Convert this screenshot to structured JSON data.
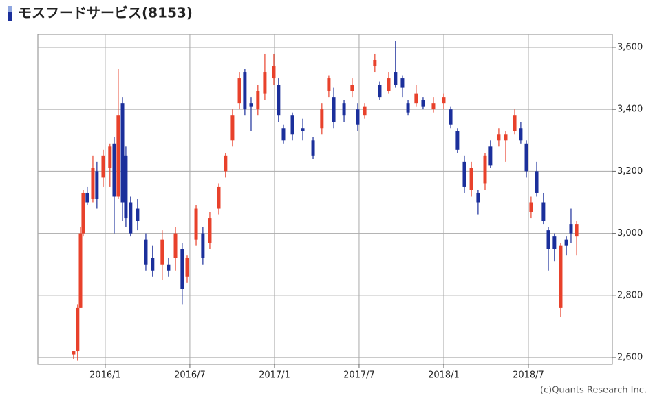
{
  "chart_data": {
    "type": "candlestick",
    "title": "モスフードサービス(8153)",
    "credit": "(c)Quants Research Inc.",
    "up_color": "#e8412b",
    "down_color": "#1b2f9b",
    "grid": true,
    "xlim": [
      2015.602,
      2018.996
    ],
    "xticks": [
      {
        "value": 2016,
        "label": "2016/1"
      },
      {
        "value": 2016.5,
        "label": "2016/7"
      },
      {
        "value": 2017,
        "label": "2017/1"
      },
      {
        "value": 2017.5,
        "label": "2017/7"
      },
      {
        "value": 2018,
        "label": "2018/1"
      },
      {
        "value": 2018.5,
        "label": "2018/7"
      }
    ],
    "ylim": [
      2578,
      3642
    ],
    "yticks": [
      {
        "value": 2600,
        "label": "2,600"
      },
      {
        "value": 2800,
        "label": "2,800"
      },
      {
        "value": 3000,
        "label": "3,000"
      },
      {
        "value": 3200,
        "label": "3,200"
      },
      {
        "value": 3400,
        "label": "3,400"
      },
      {
        "value": 3600,
        "label": "3,600"
      }
    ],
    "x": [
      2015.813,
      2015.837,
      2015.854,
      2015.87,
      2015.894,
      2015.927,
      2015.951,
      2015.988,
      2016.028,
      2016.053,
      2016.077,
      2016.102,
      2016.122,
      2016.15,
      2016.191,
      2016.24,
      2016.28,
      2016.337,
      2016.374,
      2016.415,
      2016.455,
      2016.484,
      2016.537,
      2016.577,
      2016.618,
      2016.671,
      2016.711,
      2016.752,
      2016.793,
      2016.825,
      2016.862,
      2016.902,
      2016.943,
      2016.996,
      2017.024,
      2017.053,
      2017.106,
      2017.167,
      2017.228,
      2017.28,
      2017.321,
      2017.35,
      2017.411,
      2017.459,
      2017.492,
      2017.533,
      2017.593,
      2017.622,
      2017.675,
      2017.715,
      2017.756,
      2017.789,
      2017.837,
      2017.878,
      2017.939,
      2018.0,
      2018.041,
      2018.081,
      2018.122,
      2018.163,
      2018.203,
      2018.244,
      2018.276,
      2018.325,
      2018.366,
      2018.419,
      2018.455,
      2018.488,
      2018.516,
      2018.549,
      2018.589,
      2018.618,
      2018.654,
      2018.691,
      2018.724,
      2018.752,
      2018.785
    ],
    "open": [
      2610,
      2620,
      2760,
      3000,
      3130,
      3110,
      3200,
      3180,
      3210,
      3290,
      3120,
      3420,
      3250,
      3100,
      3080,
      2980,
      2920,
      2900,
      2900,
      2920,
      2950,
      2860,
      2980,
      3000,
      2970,
      3080,
      3200,
      3300,
      3420,
      3520,
      3420,
      3400,
      3450,
      3500,
      3480,
      3340,
      3380,
      3340,
      3300,
      3340,
      3460,
      3440,
      3420,
      3460,
      3400,
      3380,
      3540,
      3480,
      3460,
      3520,
      3500,
      3420,
      3420,
      3430,
      3400,
      3420,
      3400,
      3330,
      3230,
      3140,
      3130,
      3160,
      3280,
      3300,
      3300,
      3330,
      3340,
      3290,
      3070,
      3200,
      3100,
      3010,
      2990,
      2760,
      2980,
      3030,
      2990
    ],
    "high": [
      2620,
      2770,
      3020,
      3140,
      3150,
      3250,
      3230,
      3270,
      3290,
      3310,
      3530,
      3440,
      3280,
      3120,
      3110,
      3000,
      2960,
      3010,
      2920,
      3020,
      2970,
      2930,
      3090,
      3020,
      3070,
      3160,
      3260,
      3400,
      3520,
      3530,
      3440,
      3480,
      3580,
      3580,
      3500,
      3350,
      3390,
      3370,
      3310,
      3420,
      3510,
      3470,
      3430,
      3500,
      3420,
      3420,
      3580,
      3490,
      3520,
      3620,
      3510,
      3430,
      3480,
      3440,
      3440,
      3450,
      3410,
      3340,
      3250,
      3230,
      3140,
      3260,
      3300,
      3340,
      3330,
      3400,
      3360,
      3300,
      3120,
      3230,
      3130,
      3020,
      3000,
      2970,
      2990,
      3080,
      3040
    ],
    "low": [
      2595,
      2590,
      2760,
      2990,
      3090,
      3100,
      3080,
      3150,
      3150,
      3000,
      3110,
      3040,
      3020,
      2990,
      3010,
      2880,
      2860,
      2850,
      2860,
      2880,
      2770,
      2840,
      2960,
      2900,
      2950,
      3060,
      3180,
      3280,
      3400,
      3380,
      3330,
      3380,
      3430,
      3480,
      3360,
      3290,
      3300,
      3300,
      3240,
      3320,
      3440,
      3340,
      3360,
      3440,
      3330,
      3370,
      3520,
      3430,
      3450,
      3470,
      3440,
      3380,
      3410,
      3400,
      3390,
      3400,
      3340,
      3260,
      3130,
      3120,
      3060,
      3140,
      3210,
      3280,
      3230,
      3320,
      3290,
      3180,
      3050,
      3120,
      3030,
      2880,
      2910,
      2730,
      2930,
      2970,
      2930
    ],
    "close": [
      2620,
      2760,
      3000,
      3130,
      3100,
      3210,
      3110,
      3250,
      3280,
      3120,
      3380,
      3100,
      3050,
      3000,
      3040,
      2900,
      2880,
      2980,
      2880,
      3000,
      2820,
      2920,
      3080,
      2920,
      3050,
      3150,
      3250,
      3380,
      3500,
      3400,
      3410,
      3460,
      3520,
      3540,
      3380,
      3300,
      3320,
      3330,
      3250,
      3400,
      3500,
      3360,
      3380,
      3480,
      3350,
      3410,
      3560,
      3440,
      3500,
      3480,
      3470,
      3390,
      3450,
      3410,
      3420,
      3440,
      3350,
      3270,
      3150,
      3210,
      3100,
      3250,
      3220,
      3320,
      3320,
      3380,
      3300,
      3200,
      3100,
      3130,
      3040,
      2950,
      2950,
      2960,
      2960,
      3000,
      3030
    ]
  }
}
